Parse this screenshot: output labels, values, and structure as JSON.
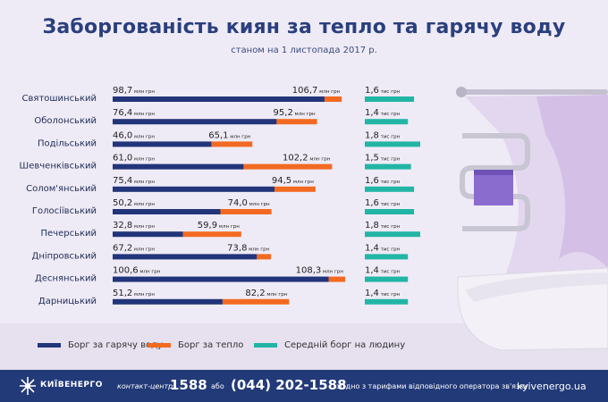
{
  "title": "Заборгованість киян за тепло та гарячу воду",
  "subtitle": "станом на 1 листопада 2017 р.",
  "colors": {
    "hot_water": "#22357a",
    "heat": "#f26a21",
    "avg": "#22b5a5",
    "footer_bg": "#223a78",
    "title": "#2a3f7e"
  },
  "legend": {
    "hot_water": "Борг за гарячу воду",
    "heat": "Борг за тепло",
    "avg": "Середній борг на людину"
  },
  "footer": {
    "logo": "КИЇВЕНЕРГО",
    "contact_label": "контакт-центр:",
    "short_number": "1588",
    "or": "або",
    "phone": "(044) 202-1588",
    "tariff_note": "згідно з тарифами відповідного оператора зв'язку",
    "website": "kyivenergo.ua"
  },
  "chart_data": {
    "type": "bar",
    "unit_money": "млн грн",
    "unit_avg": "тис грн",
    "categories": [
      "Святошинський",
      "Оболонський",
      "Подільський",
      "Шевченківський",
      "Солом'янський",
      "Голосіївський",
      "Печерський",
      "Дніпровський",
      "Деснянський",
      "Дарницький"
    ],
    "series": [
      {
        "name": "Борг за гарячу воду",
        "values": [
          98.7,
          76.4,
          46.0,
          61.0,
          75.4,
          50.2,
          32.8,
          67.2,
          100.6,
          51.2
        ],
        "labels": [
          "98,7",
          "76,4",
          "46,0",
          "61,0",
          "75,4",
          "50,2",
          "32,8",
          "67,2",
          "100,6",
          "51,2"
        ]
      },
      {
        "name": "Борг за тепло",
        "values": [
          106.7,
          95.2,
          65.1,
          102.2,
          94.5,
          74.0,
          59.9,
          73.8,
          108.3,
          82.2
        ],
        "labels": [
          "106,7",
          "95,2",
          "65,1",
          "102,2",
          "94,5",
          "74,0",
          "59,9",
          "73,8",
          "108,3",
          "82,2"
        ]
      },
      {
        "name": "Середній борг на людину",
        "values": [
          1.6,
          1.4,
          1.8,
          1.5,
          1.6,
          1.6,
          1.8,
          1.4,
          1.4,
          1.4
        ],
        "labels": [
          "1,6",
          "1,4",
          "1,8",
          "1,5",
          "1,6",
          "1,6",
          "1,8",
          "1,4",
          "1,4",
          "1,4"
        ]
      }
    ]
  }
}
